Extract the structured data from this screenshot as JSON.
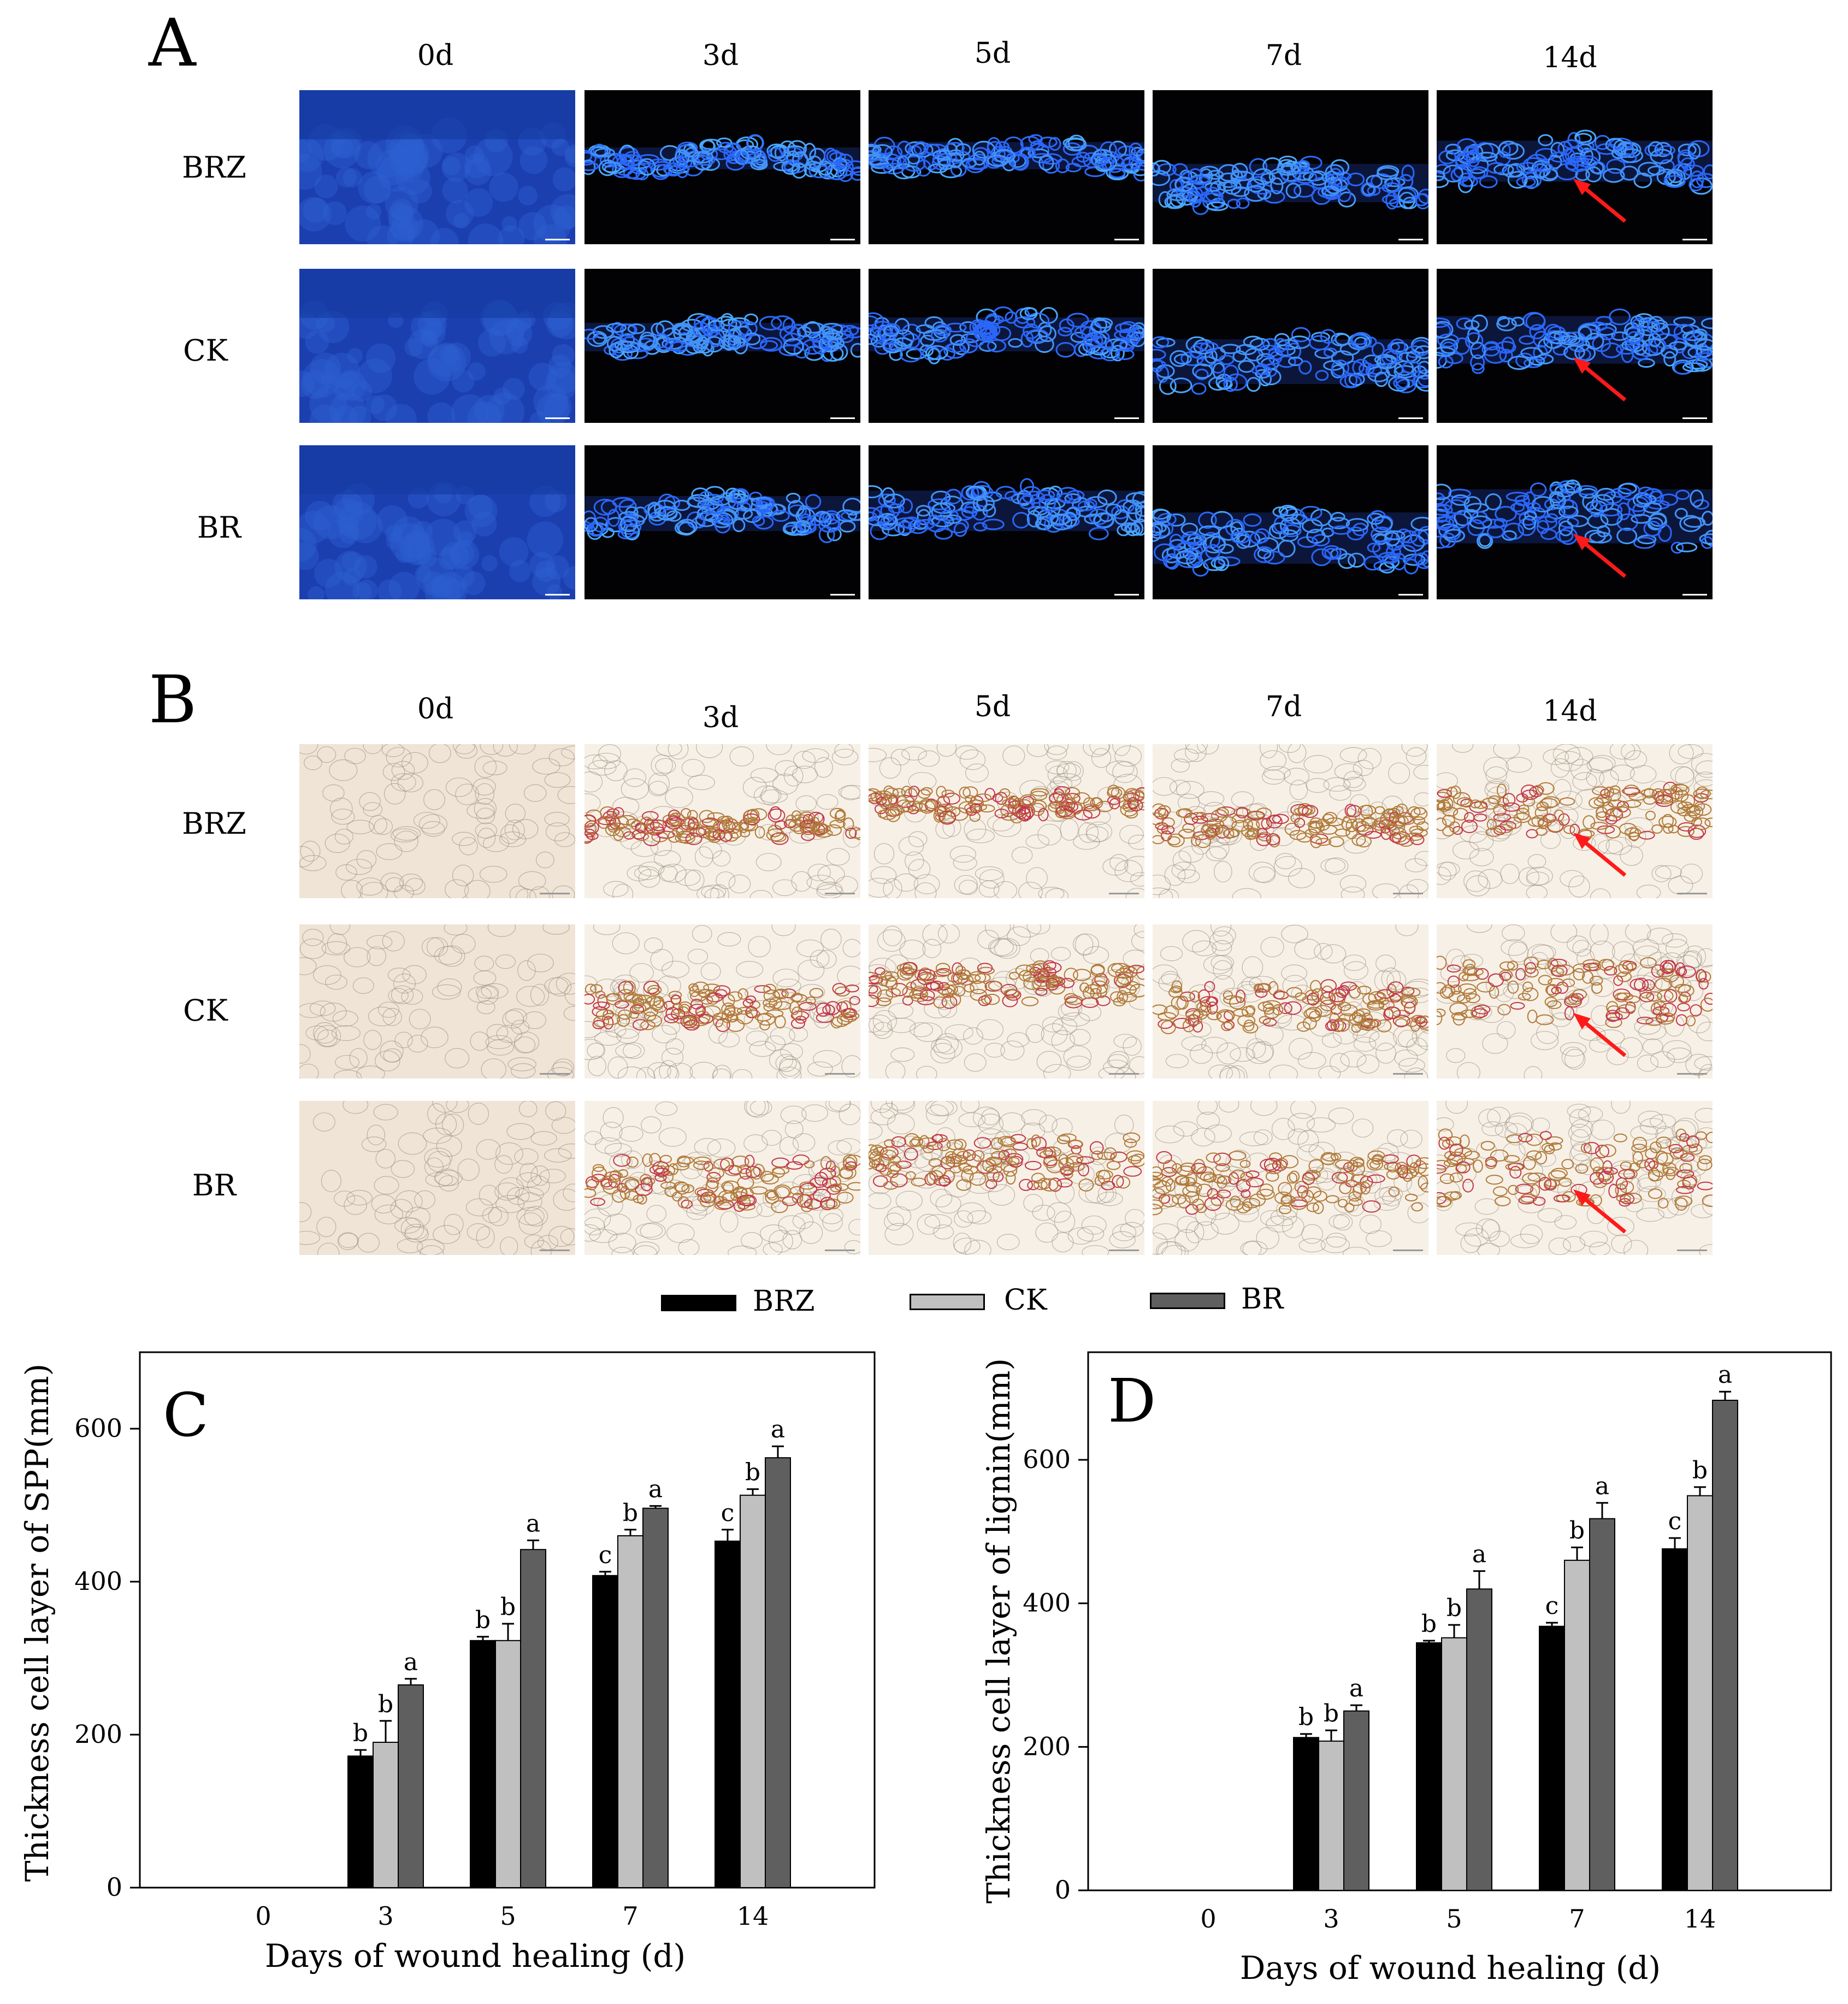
{
  "panel_a": {
    "letter": "A",
    "columns": [
      "0d",
      "3d",
      "5d",
      "7d",
      "14d"
    ],
    "rows": [
      "BRZ",
      "CK",
      "BR"
    ]
  },
  "panel_b": {
    "letter": "B",
    "columns": [
      "0d",
      "3d",
      "5d",
      "7d",
      "14d"
    ],
    "rows": [
      "BRZ",
      "CK",
      "BR"
    ]
  },
  "legend": [
    {
      "name": "BRZ",
      "color": "#000000"
    },
    {
      "name": "CK",
      "color": "#c0c0c0"
    },
    {
      "name": "BR",
      "color": "#5f5f5f"
    }
  ],
  "colors": {
    "fluorescent_bg": "#020205",
    "fluorescent_band": "#2a6cff",
    "stain_bg": "#f7f0e6",
    "stain_band": "#b07a3a",
    "arrow": "#ff1a1a"
  },
  "chart_data": [
    {
      "panel": "C",
      "type": "bar",
      "categories": [
        "0",
        "3",
        "5",
        "7",
        "14"
      ],
      "series": [
        {
          "name": "BRZ",
          "values": [
            0,
            172,
            323,
            408,
            453
          ],
          "errors": [
            0,
            8,
            5,
            5,
            15
          ]
        },
        {
          "name": "CK",
          "values": [
            0,
            190,
            323,
            460,
            513
          ],
          "errors": [
            0,
            28,
            22,
            8,
            8
          ]
        },
        {
          "name": "BR",
          "values": [
            0,
            265,
            442,
            496,
            562
          ],
          "errors": [
            0,
            8,
            12,
            3,
            15
          ]
        }
      ],
      "letters": [
        [
          "",
          "b",
          "b",
          "c",
          "c"
        ],
        [
          "",
          "b",
          "b",
          "b",
          "b"
        ],
        [
          "",
          "a",
          "a",
          "a",
          "a"
        ]
      ],
      "xlabel": "Days of wound healing (d)",
      "ylabel": "Thickness  cell layer of SPP(mm)",
      "ylim": [
        0,
        700
      ],
      "yticks": [
        0,
        200,
        400,
        600
      ]
    },
    {
      "panel": "D",
      "type": "bar",
      "categories": [
        "0",
        "3",
        "5",
        "7",
        "14"
      ],
      "series": [
        {
          "name": "BRZ",
          "values": [
            0,
            213,
            345,
            368,
            476
          ],
          "errors": [
            0,
            5,
            3,
            5,
            15
          ]
        },
        {
          "name": "CK",
          "values": [
            0,
            208,
            352,
            460,
            550
          ],
          "errors": [
            0,
            15,
            18,
            18,
            12
          ]
        },
        {
          "name": "BR",
          "values": [
            0,
            250,
            420,
            518,
            683
          ],
          "errors": [
            0,
            8,
            25,
            22,
            12
          ]
        }
      ],
      "letters": [
        [
          "",
          "b",
          "b",
          "c",
          "c"
        ],
        [
          "",
          "b",
          "b",
          "b",
          "b"
        ],
        [
          "",
          "a",
          "a",
          "a",
          "a"
        ]
      ],
      "xlabel": "Days of wound healing (d)",
      "ylabel": "Thickness  cell layer of lignin(mm)",
      "ylim": [
        0,
        750
      ],
      "yticks": [
        0,
        200,
        400,
        600
      ]
    }
  ]
}
